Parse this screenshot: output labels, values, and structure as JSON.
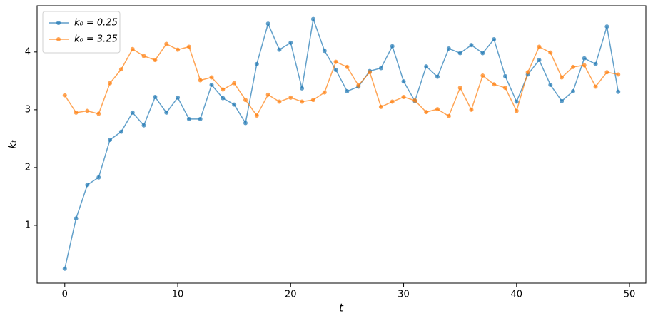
{
  "chart_data": {
    "type": "line",
    "x_label": "t",
    "y_label": "kₜ",
    "x": [
      0,
      1,
      2,
      3,
      4,
      5,
      6,
      7,
      8,
      9,
      10,
      11,
      12,
      13,
      14,
      15,
      16,
      17,
      18,
      19,
      20,
      21,
      22,
      23,
      24,
      25,
      26,
      27,
      28,
      29,
      30,
      31,
      32,
      33,
      34,
      35,
      36,
      37,
      38,
      39,
      40,
      41,
      42,
      43,
      44,
      45,
      46,
      47,
      48,
      49
    ],
    "series": [
      {
        "name": "k₀ = 0.25",
        "color": "#1f77b4",
        "values": [
          0.25,
          1.12,
          1.7,
          1.83,
          2.48,
          2.62,
          2.95,
          2.73,
          3.22,
          2.95,
          3.21,
          2.84,
          2.84,
          3.43,
          3.2,
          3.09,
          2.77,
          3.79,
          4.49,
          4.04,
          4.16,
          3.37,
          4.57,
          4.02,
          3.69,
          3.32,
          3.4,
          3.67,
          3.72,
          4.1,
          3.49,
          3.15,
          3.75,
          3.57,
          4.06,
          3.98,
          4.12,
          3.98,
          4.22,
          3.58,
          3.14,
          3.61,
          3.86,
          3.43,
          3.15,
          3.32,
          3.89,
          3.79,
          4.44,
          3.31
        ]
      },
      {
        "name": "k₀ = 3.25",
        "color": "#ff7f0e",
        "values": [
          3.25,
          2.95,
          2.98,
          2.93,
          3.46,
          3.7,
          4.05,
          3.93,
          3.86,
          4.14,
          4.04,
          4.09,
          3.51,
          3.56,
          3.35,
          3.46,
          3.17,
          2.9,
          3.26,
          3.14,
          3.21,
          3.14,
          3.17,
          3.3,
          3.83,
          3.74,
          3.42,
          3.65,
          3.05,
          3.14,
          3.22,
          3.16,
          2.96,
          3.01,
          2.89,
          3.38,
          3.0,
          3.59,
          3.44,
          3.38,
          2.98,
          3.65,
          4.09,
          3.99,
          3.56,
          3.74,
          3.77,
          3.4,
          3.65,
          3.61
        ]
      }
    ],
    "xlim": [
      -2.45,
      51.45
    ],
    "ylim": [
      0,
      4.8
    ],
    "xticks": [
      0,
      10,
      20,
      30,
      40,
      50
    ],
    "yticks": [
      1,
      2,
      3,
      4
    ],
    "legend": "upper left"
  }
}
